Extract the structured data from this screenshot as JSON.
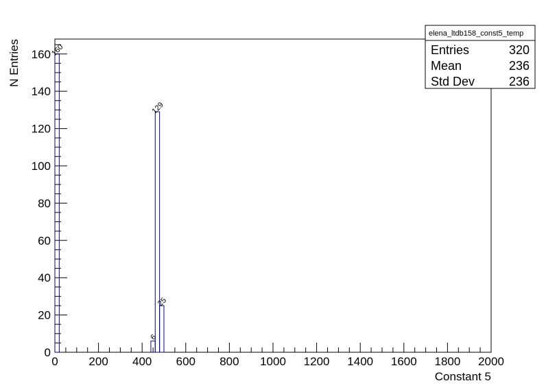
{
  "chart_data": {
    "type": "histogram",
    "xlabel": "Constant 5",
    "ylabel": "N Entries",
    "bins": [
      0,
      20,
      40,
      60,
      80,
      100,
      120,
      140,
      160,
      180,
      200,
      220,
      240,
      260,
      280,
      300,
      320,
      340,
      360,
      380,
      400,
      420,
      440,
      460,
      480,
      500,
      520,
      540,
      560,
      580,
      600,
      620,
      640,
      660,
      680,
      700,
      720,
      740,
      760,
      780,
      800,
      820,
      840,
      860,
      880,
      900,
      920,
      940,
      960,
      980,
      1000,
      1020,
      1040,
      1060,
      1080,
      1100,
      1120,
      1140,
      1160,
      1180,
      1200,
      1220,
      1240,
      1260,
      1280,
      1300,
      1320,
      1340,
      1360,
      1380,
      1400,
      1420,
      1440,
      1460,
      1480,
      1500,
      1520,
      1540,
      1560,
      1580,
      1600,
      1620,
      1640,
      1660,
      1680,
      1700,
      1720,
      1740,
      1760,
      1780,
      1800,
      1820,
      1840,
      1860,
      1880,
      1900,
      1920,
      1940,
      1960,
      1980,
      2000
    ],
    "values": [
      160,
      0,
      0,
      0,
      0,
      0,
      0,
      0,
      0,
      0,
      0,
      0,
      0,
      0,
      0,
      0,
      0,
      0,
      0,
      0,
      0,
      0,
      6,
      129,
      25,
      0,
      0,
      0,
      0,
      0,
      0,
      0,
      0,
      0,
      0,
      0,
      0,
      0,
      0,
      0,
      0,
      0,
      0,
      0,
      0,
      0,
      0,
      0,
      0,
      0,
      0,
      0,
      0,
      0,
      0,
      0,
      0,
      0,
      0,
      0,
      0,
      0,
      0,
      0,
      0,
      0,
      0,
      0,
      0,
      0,
      0,
      0,
      0,
      0,
      0,
      0,
      0,
      0,
      0,
      0,
      0,
      0,
      0,
      0,
      0,
      0,
      0,
      0,
      0,
      0,
      0,
      0,
      0,
      0,
      0,
      0,
      0,
      0,
      0,
      0
    ],
    "color": "#000080",
    "xlim": [
      0,
      2000
    ],
    "xticks": [
      0,
      200,
      400,
      600,
      800,
      1000,
      1200,
      1400,
      1600,
      1800,
      2000
    ],
    "xminorticks": [
      50,
      100,
      150,
      250,
      300,
      350,
      450,
      500,
      550,
      650,
      700,
      750,
      850,
      900,
      950,
      1050,
      1100,
      1150,
      1250,
      1300,
      1350,
      1450,
      1500,
      1550,
      1650,
      1700,
      1750,
      1850,
      1900,
      1950
    ],
    "ylim": [
      0,
      168
    ],
    "yticks": [
      0,
      20,
      40,
      60,
      80,
      100,
      120,
      140,
      160
    ],
    "yminorticks": [
      5,
      10,
      15,
      25,
      30,
      35,
      45,
      50,
      55,
      65,
      70,
      75,
      85,
      90,
      95,
      105,
      110,
      115,
      125,
      130,
      135,
      145,
      150,
      155,
      165
    ],
    "stats": {
      "title": "elena_ltdb158_const5_temp",
      "rows": [
        {
          "label": "Entries",
          "value": 320
        },
        {
          "label": "Mean",
          "value": 236
        },
        {
          "label": "Std Dev",
          "value": 236
        }
      ]
    }
  }
}
